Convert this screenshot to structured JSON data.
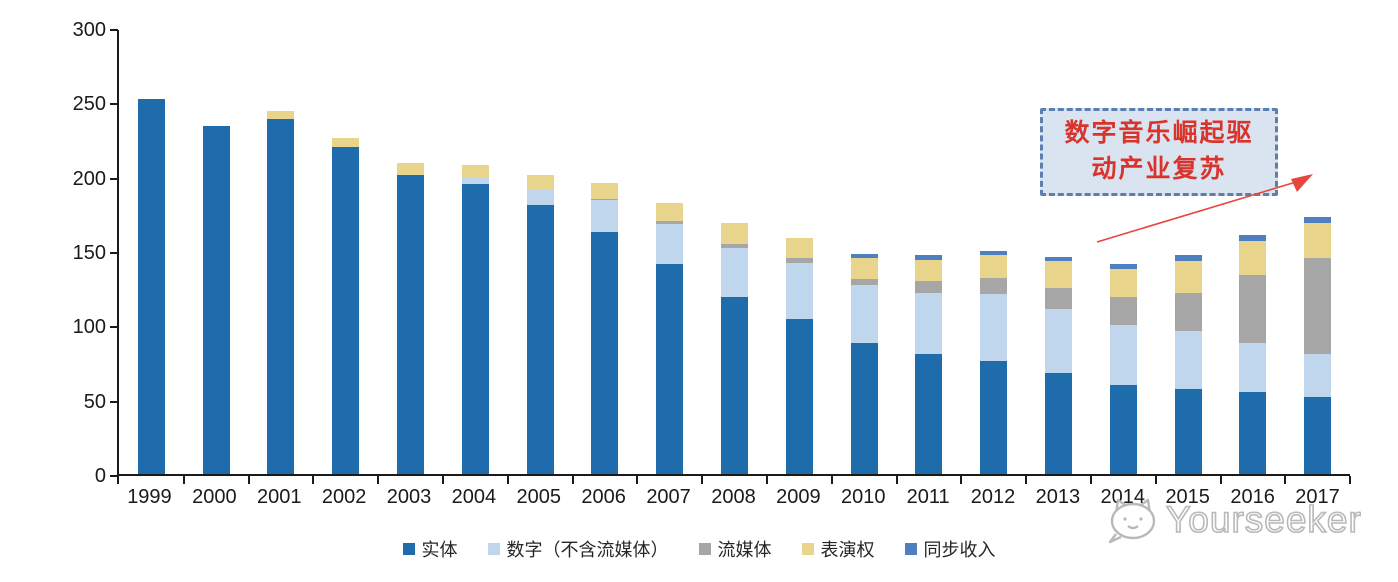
{
  "chart_data": {
    "type": "bar",
    "subtype": "stacked",
    "categories": [
      "1999",
      "2000",
      "2001",
      "2002",
      "2003",
      "2004",
      "2005",
      "2006",
      "2007",
      "2008",
      "2009",
      "2010",
      "2011",
      "2012",
      "2013",
      "2014",
      "2015",
      "2016",
      "2017"
    ],
    "series": [
      {
        "name": "实体",
        "key": "physical",
        "color": "#1f6cac",
        "values": [
          252,
          234,
          239,
          220,
          201,
          195,
          181,
          163,
          141,
          119,
          104,
          88,
          81,
          76,
          68,
          60,
          57,
          55,
          52
        ]
      },
      {
        "name": "数字（不含流媒体）",
        "key": "digital-excl-streaming",
        "color": "#bfd6ed",
        "values": [
          0,
          0,
          0,
          0,
          0,
          5,
          11,
          21,
          27,
          33,
          38,
          39,
          41,
          45,
          43,
          40,
          39,
          33,
          29
        ]
      },
      {
        "name": "流媒体",
        "key": "streaming",
        "color": "#a6a6a6",
        "values": [
          0,
          0,
          0,
          0,
          0,
          0,
          0,
          1,
          2,
          3,
          3,
          4,
          8,
          11,
          14,
          19,
          26,
          46,
          64
        ]
      },
      {
        "name": "表演权",
        "key": "performance-rights",
        "color": "#e8d48a",
        "values": [
          0,
          0,
          5,
          6,
          8,
          8,
          9,
          11,
          12,
          14,
          14,
          14,
          14,
          15,
          18,
          19,
          21,
          23,
          24
        ]
      },
      {
        "name": "同步收入",
        "key": "sync-revenue",
        "color": "#4e7fbf",
        "values": [
          0,
          0,
          0,
          0,
          0,
          0,
          0,
          0,
          0,
          0,
          0,
          3,
          3,
          3,
          3,
          3,
          4,
          4,
          4
        ]
      }
    ],
    "totals": [
      252,
      234,
      244,
      226,
      209,
      208,
      201,
      196,
      182,
      169,
      159,
      148,
      147,
      150,
      146,
      141,
      147,
      161,
      173
    ],
    "ylim": [
      0,
      300
    ],
    "yticks": [
      0,
      50,
      100,
      150,
      200,
      250,
      300
    ],
    "grid": false,
    "legend_position": "bottom",
    "axis_color": "#1a1a1a"
  },
  "annotation": {
    "lines": [
      "数字音乐崛起驱",
      "动产业复苏"
    ],
    "full_text": "数字音乐崛起驱动产业复苏",
    "fill_color": "#dae3f0",
    "border_color": "#5b7fb0",
    "text_color": "#d9342b",
    "arrow_color": "#e8453c"
  },
  "watermark": {
    "text": "Yourseeker",
    "icon": "cat-logo-icon",
    "color": "#b9b9b9"
  }
}
